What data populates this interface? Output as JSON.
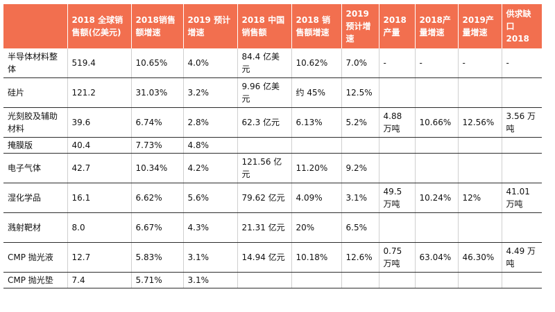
{
  "table": {
    "headers": [
      "",
      "2018 全球销售额(亿美元)",
      "2018销售额增速",
      "2019 预计增速",
      "2018 中国销售额",
      "2018 销售额增速",
      "2019 预计增速",
      "2018 产量",
      "2018产量增速",
      "2019产量增速",
      "供求缺口 2018"
    ],
    "rows": [
      [
        "半导体材料整体",
        "519.4",
        "10.65%",
        "4.0%",
        "84.4 亿美元",
        "10.62%",
        "7.0%",
        "-",
        "-",
        "-",
        "-"
      ],
      [
        "硅片",
        "121.2",
        "31.03%",
        "3.2%",
        "9.96 亿美元",
        "约 45%",
        "12.5%",
        "",
        "",
        "",
        ""
      ],
      [
        "光刻胶及辅助材料",
        "39.6",
        "6.74%",
        "2.8%",
        "62.3 亿元",
        "6.13%",
        "5.2%",
        "4.88 万吨",
        "10.66%",
        "12.56%",
        "3.56 万吨"
      ],
      [
        "掩膜版",
        "40.4",
        "7.73%",
        "4.8%",
        "",
        "",
        "",
        "",
        "",
        "",
        ""
      ],
      [
        "电子气体",
        "42.7",
        "10.34%",
        "4.2%",
        "121.56 亿元",
        "11.20%",
        "9.2%",
        "",
        "",
        "",
        ""
      ],
      [
        "湿化学品",
        "16.1",
        "6.62%",
        "5.6%",
        "79.62 亿元",
        "4.09%",
        "3.1%",
        "49.5 万吨",
        "10.24%",
        "12%",
        "41.01 万吨"
      ],
      [
        "溅射靶材",
        "8.0",
        "6.67%",
        "4.3%",
        "21.31 亿元",
        "20%",
        "6.5%",
        "",
        "",
        "",
        ""
      ],
      [
        "CMP 抛光液",
        "12.7",
        "5.83%",
        "3.1%",
        "14.94 亿元",
        "10.18%",
        "12.6%",
        "0.75 万吨",
        "63.04%",
        "46.30%",
        "4.49 万吨"
      ],
      [
        "CMP 抛光垫",
        "7.4",
        "5.71%",
        "3.1%",
        "",
        "",
        "",
        "",
        "",
        "",
        ""
      ]
    ]
  }
}
